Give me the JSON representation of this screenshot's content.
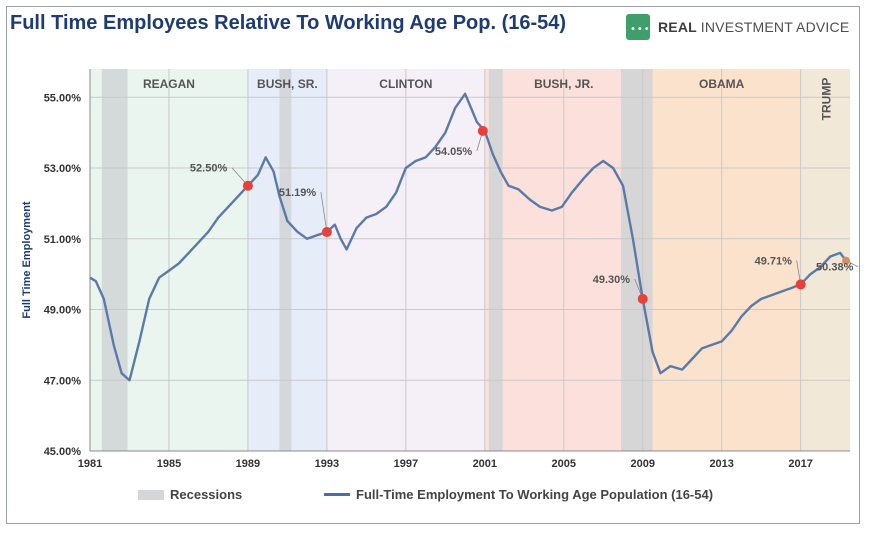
{
  "header": {
    "title": "Full Time Employees Relative To Working Age Pop. (16-54)",
    "brand": {
      "mark": "•••",
      "name_part1": "REAL ",
      "name_part2": "INVESTMENT ADVICE"
    }
  },
  "legend": {
    "recessions": "Recessions",
    "series": "Full-Time Employment To Working Age Population (16-54)"
  },
  "colors": {
    "title": "#1f3b73",
    "line": "#5b7aa8",
    "marker": "#e8413a",
    "recession": "#d0d4d6",
    "reagan": "#eaf5ef",
    "bush_sr": "#e6edf8",
    "clinton": "#f5eff7",
    "bush_jr": "#fbe0dc",
    "obama": "#fbe2cc",
    "trump": "#f2e8d8"
  },
  "chart_data": {
    "type": "line",
    "title": "Full Time Employees Relative To Working Age Pop. (16-54)",
    "ylabel": "Full Time Employment",
    "xlabel": "",
    "xlim": [
      1981,
      2019.5
    ],
    "ylim": [
      45,
      55.8
    ],
    "x_ticks": [
      1981,
      1985,
      1989,
      1993,
      1997,
      2001,
      2005,
      2009,
      2013,
      2017
    ],
    "y_ticks": [
      45,
      47,
      49,
      51,
      53,
      55
    ],
    "y_tick_labels": [
      "45.00%",
      "47.00%",
      "49.00%",
      "51.00%",
      "53.00%",
      "55.00%"
    ],
    "grid": true,
    "legend_position": "bottom",
    "presidents": [
      {
        "name": "REAGAN",
        "start": 1981,
        "end": 1989
      },
      {
        "name": "BUSH, SR.",
        "start": 1989,
        "end": 1993
      },
      {
        "name": "CLINTON",
        "start": 1993,
        "end": 2001
      },
      {
        "name": "BUSH, JR.",
        "start": 2001,
        "end": 2009
      },
      {
        "name": "OBAMA",
        "start": 2009,
        "end": 2017
      },
      {
        "name": "TRUMP",
        "start": 2017,
        "end": 2019.5
      }
    ],
    "recessions": [
      {
        "start": 1981.6,
        "end": 1982.9
      },
      {
        "start": 1990.6,
        "end": 1991.2
      },
      {
        "start": 2001.2,
        "end": 2001.9
      },
      {
        "start": 2007.9,
        "end": 2009.5
      }
    ],
    "series": [
      {
        "name": "Full-Time Employment To Working Age Population (16-54)",
        "x": [
          1981.0,
          1981.3,
          1981.7,
          1982.2,
          1982.6,
          1983.0,
          1983.5,
          1984.0,
          1984.5,
          1985.0,
          1985.5,
          1986.0,
          1986.5,
          1987.0,
          1987.5,
          1988.0,
          1988.5,
          1989.0,
          1989.5,
          1989.9,
          1990.3,
          1990.6,
          1991.0,
          1991.5,
          1992.0,
          1992.5,
          1993.0,
          1993.4,
          1993.7,
          1994.0,
          1994.5,
          1995.0,
          1995.5,
          1996.0,
          1996.5,
          1997.0,
          1997.5,
          1998.0,
          1998.5,
          1999.0,
          1999.5,
          2000.0,
          2000.3,
          2000.6,
          2001.0,
          2001.4,
          2001.8,
          2002.2,
          2002.7,
          2003.3,
          2003.8,
          2004.4,
          2004.9,
          2005.4,
          2006.0,
          2006.5,
          2007.0,
          2007.5,
          2008.0,
          2008.5,
          2009.0,
          2009.5,
          2009.9,
          2010.4,
          2011.0,
          2011.5,
          2012.0,
          2012.5,
          2013.0,
          2013.5,
          2014.0,
          2014.5,
          2015.0,
          2015.5,
          2016.0,
          2016.5,
          2017.0,
          2017.5,
          2018.0,
          2018.5,
          2019.0,
          2019.3
        ],
        "values": [
          49.9,
          49.8,
          49.3,
          48.0,
          47.2,
          47.0,
          48.1,
          49.3,
          49.9,
          50.1,
          50.3,
          50.6,
          50.9,
          51.2,
          51.6,
          51.9,
          52.2,
          52.5,
          52.8,
          53.3,
          52.9,
          52.2,
          51.5,
          51.2,
          51.0,
          51.1,
          51.19,
          51.4,
          51.0,
          50.7,
          51.3,
          51.6,
          51.7,
          51.9,
          52.3,
          53.0,
          53.2,
          53.3,
          53.6,
          54.0,
          54.7,
          55.1,
          54.7,
          54.3,
          54.05,
          53.4,
          52.9,
          52.5,
          52.4,
          52.1,
          51.9,
          51.8,
          51.9,
          52.3,
          52.7,
          53.0,
          53.2,
          53.0,
          52.5,
          51.0,
          49.3,
          47.8,
          47.2,
          47.4,
          47.3,
          47.6,
          47.9,
          48.0,
          48.1,
          48.4,
          48.8,
          49.1,
          49.3,
          49.4,
          49.5,
          49.6,
          49.71,
          50.0,
          50.2,
          50.5,
          50.6,
          50.38
        ]
      }
    ],
    "annotations": [
      {
        "x": 1989.0,
        "y": 52.5,
        "label": "52.50%"
      },
      {
        "x": 1993.0,
        "y": 51.19,
        "label": "51.19%"
      },
      {
        "x": 2000.9,
        "y": 54.05,
        "label": "54.05%"
      },
      {
        "x": 2009.0,
        "y": 49.3,
        "label": "49.30%"
      },
      {
        "x": 2017.0,
        "y": 49.71,
        "label": "49.71%"
      },
      {
        "x": 2019.3,
        "y": 50.38,
        "label": "50.38%"
      }
    ]
  }
}
